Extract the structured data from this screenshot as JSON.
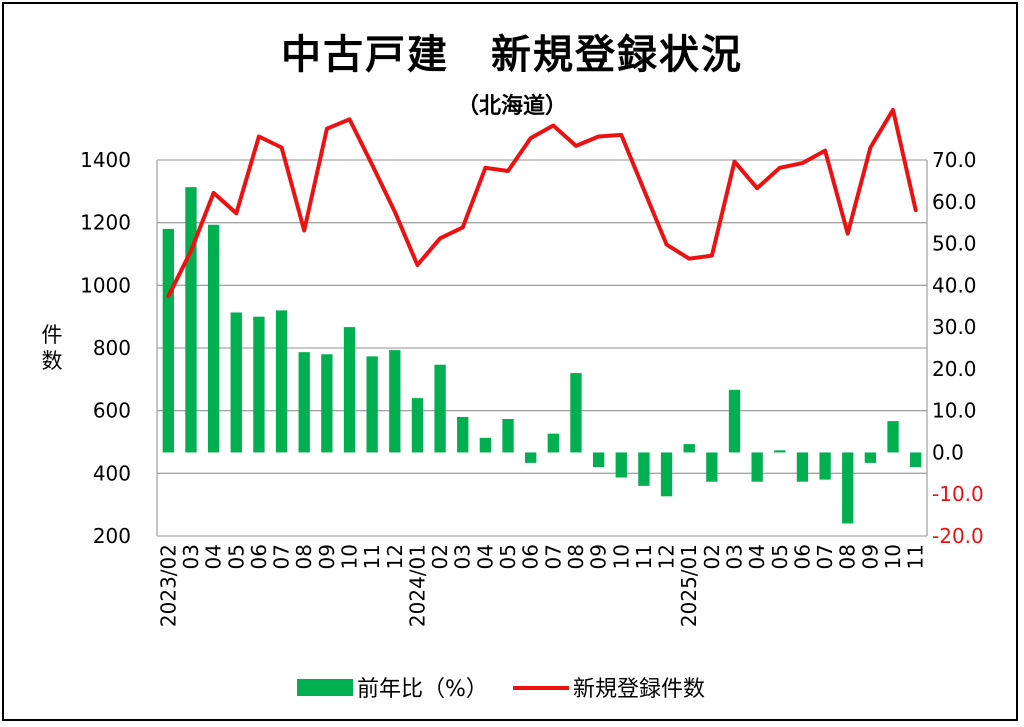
{
  "chart_data": {
    "type": "bar+line",
    "title": "中古戸建　新規登録状況",
    "subtitle": "（北海道）",
    "ylabel_left": "件数",
    "ylim_left": [
      200,
      1400
    ],
    "yticks_left": [
      "1400",
      "1200",
      "1000",
      "800",
      "600",
      "400",
      "200"
    ],
    "ylim_right": [
      -20,
      70
    ],
    "yticks_right": [
      "70.0",
      "60.0",
      "50.0",
      "40.0",
      "30.0",
      "20.0",
      "10.0",
      "0.0",
      "-10.0",
      "-20.0"
    ],
    "x": [
      "2023/02",
      "03",
      "04",
      "05",
      "06",
      "07",
      "08",
      "09",
      "10",
      "11",
      "12",
      "2024/01",
      "02",
      "03",
      "04",
      "05",
      "06",
      "07",
      "08",
      "09",
      "10",
      "11",
      "12",
      "2025/01",
      "02",
      "03",
      "04",
      "05",
      "06",
      "07",
      "08",
      "09",
      "10",
      "11"
    ],
    "series": [
      {
        "name": "前年比（%）",
        "type": "bar",
        "axis": "right",
        "color": "#00b050",
        "values": [
          53.5,
          63.5,
          54.5,
          33.5,
          32.5,
          34.0,
          24.0,
          23.5,
          30.0,
          23.0,
          24.5,
          13.0,
          21.0,
          8.5,
          3.5,
          8.0,
          -2.5,
          4.5,
          19.0,
          -3.5,
          -6.0,
          -8.0,
          -10.5,
          2.0,
          -7.0,
          15.0,
          -7.0,
          0.5,
          -7.0,
          -6.5,
          -17.0,
          -2.5,
          7.5,
          -3.5
        ]
      },
      {
        "name": "新規登録件数",
        "type": "line",
        "axis": "left",
        "color": "#ee1111",
        "values": [
          965,
          1110,
          1295,
          1230,
          1475,
          1440,
          1175,
          1500,
          1530,
          1385,
          1235,
          1065,
          1150,
          1185,
          1375,
          1365,
          1470,
          1510,
          1445,
          1475,
          1480,
          1305,
          1130,
          1085,
          1095,
          1395,
          1310,
          1375,
          1390,
          1430,
          1165,
          1440,
          1560,
          1240
        ]
      }
    ],
    "legend_position": "bottom",
    "grid": true
  }
}
